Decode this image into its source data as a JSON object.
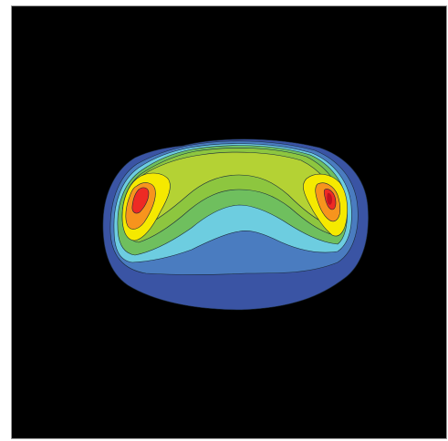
{
  "image": {
    "type": "filled-contour-map",
    "background": "#000000",
    "border": "#9a9a9a",
    "colormap": [
      "#3a54a4",
      "#4a7cc0",
      "#6dcde0",
      "#6fbf5e",
      "#8dc63f",
      "#b4d234",
      "#f5e900",
      "#f7941d",
      "#ee2a24",
      "#c1121f"
    ]
  }
}
